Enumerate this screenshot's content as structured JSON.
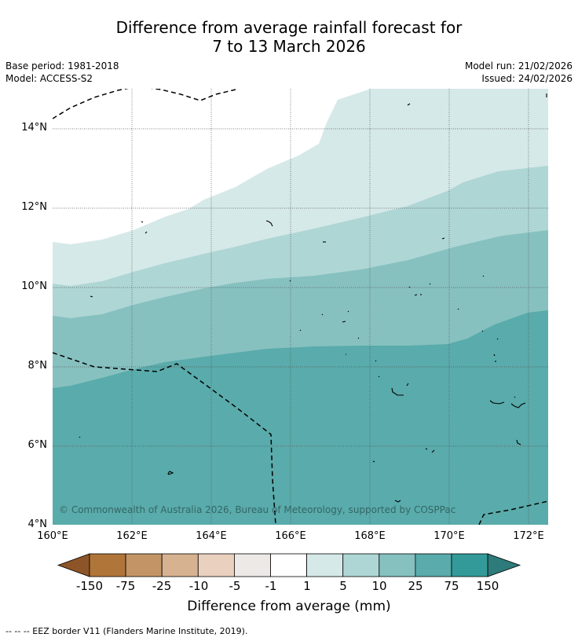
{
  "title": {
    "line1": "Difference from average rainfall forecast for",
    "line2": "7 to 13 March 2026"
  },
  "info": {
    "base_period": "Base period: 1981-2018",
    "model": "Model: ACCESS-S2",
    "model_run": "Model run: 21/02/2026",
    "issued": "Issued: 24/02/2026"
  },
  "map": {
    "lon_labels": [
      "160°E",
      "162°E",
      "164°E",
      "166°E",
      "168°E",
      "170°E",
      "172°E"
    ],
    "lat_labels": [
      "14°N",
      "12°N",
      "10°N",
      "8°N",
      "6°N",
      "4°N"
    ],
    "copyright": "© Commonwealth of Australia 2026, Bureau of Meteorology, supported by COSPPac",
    "bands": [
      {
        "name": "1 to 5 mm",
        "color": "#d5e9e8"
      },
      {
        "name": "5 to 10 mm",
        "color": "#aed6d5"
      },
      {
        "name": "10 to 25 mm",
        "color": "#86c1c0"
      },
      {
        "name": "25 to 75 mm",
        "color": "#5aabab"
      }
    ]
  },
  "colorbar": {
    "title": "Difference from average (mm)",
    "tick_labels": [
      "-150",
      "-75",
      "-25",
      "-10",
      "-5",
      "-1",
      "1",
      "5",
      "10",
      "25",
      "75",
      "150"
    ],
    "colors": [
      "#8d5527",
      "#b07539",
      "#c39566",
      "#d6b291",
      "#e9d0bf",
      "#ece9e6",
      "#ffffff",
      "#d5e9e8",
      "#aed6d5",
      "#86c1c0",
      "#5aabab",
      "#339a99",
      "#2d7b7a"
    ]
  },
  "footnote": "--  --  -- EEZ border V11 (Flanders Marine Institute, 2019)."
}
